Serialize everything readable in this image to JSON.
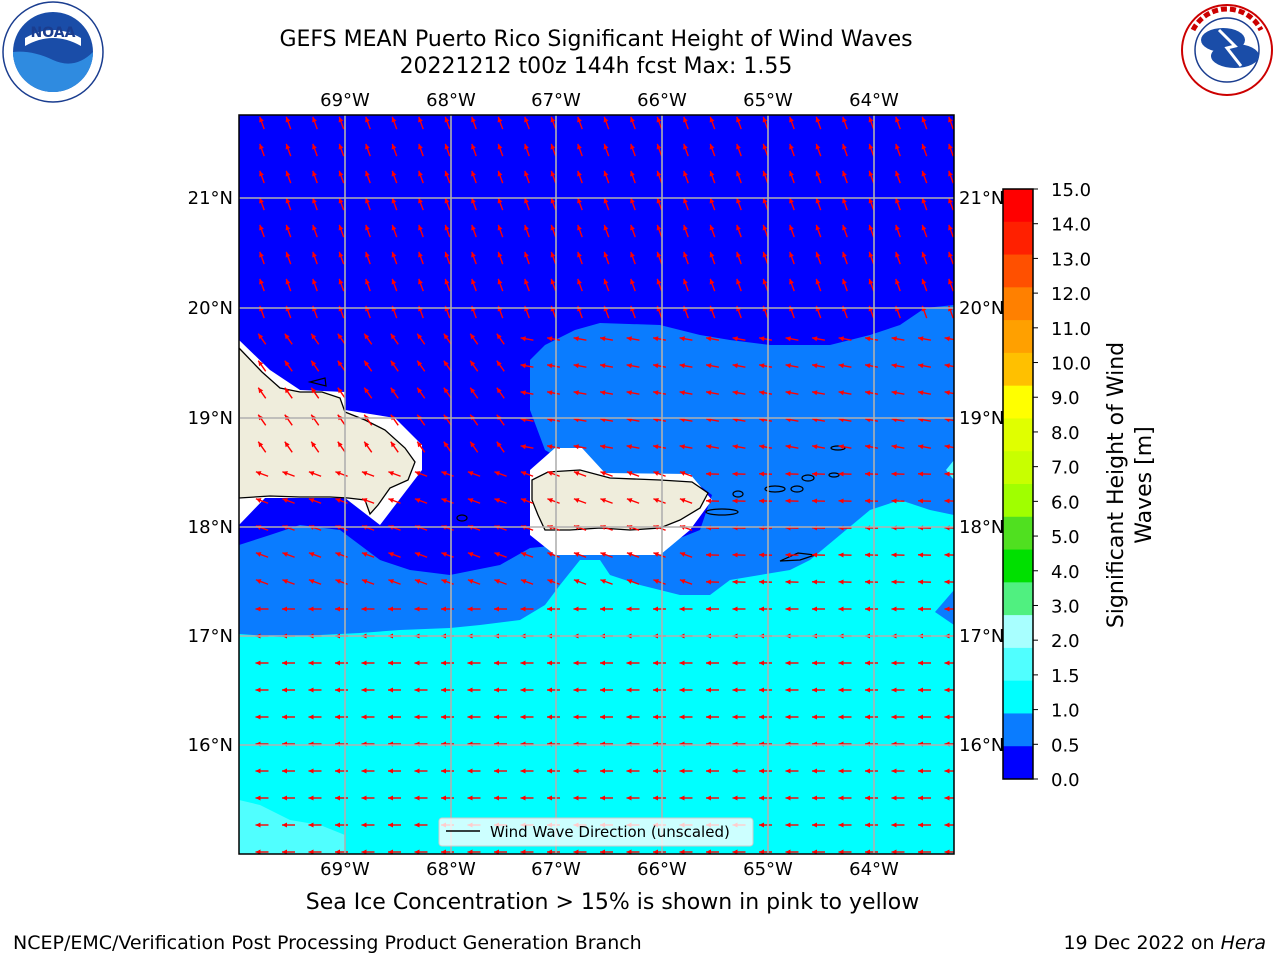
{
  "title": {
    "line1": "GEFS MEAN Puerto Rico Significant Height of Wind Waves",
    "line2": "20221212 t00z 144h fcst   Max: 1.55"
  },
  "map": {
    "lon_labels": [
      "69°W",
      "68°W",
      "67°W",
      "66°W",
      "65°W",
      "64°W"
    ],
    "lat_labels": [
      "21°N",
      "20°N",
      "19°N",
      "18°N",
      "17°N",
      "16°N"
    ],
    "legend_label": "Wind Wave Direction (unscaled)",
    "colors": {
      "band_0_0_5": "#0000ff",
      "band_0_5_1_0": "#0a7cff",
      "band_1_0_1_5": "#00ffff",
      "band_1_5_2_0": "#50ffff",
      "land": "#efeddc",
      "arrows": "#ff0000"
    }
  },
  "colorbar": {
    "label": "Significant Height of Wind Waves [m]",
    "label_line1": "Significant Height of Wind",
    "label_line2": "Waves [m]",
    "ticks": [
      "15.0",
      "14.0",
      "13.0",
      "12.0",
      "11.0",
      "10.0",
      "9.0",
      "8.0",
      "7.0",
      "6.0",
      "5.0",
      "4.0",
      "3.0",
      "2.0",
      "1.5",
      "1.0",
      "0.5",
      "0.0"
    ],
    "colors_top_to_bottom": [
      "#ff0000",
      "#ff2000",
      "#ff5000",
      "#ff8000",
      "#ffa000",
      "#ffc000",
      "#ffff00",
      "#e0ff00",
      "#c8ff00",
      "#a0ff00",
      "#50e020",
      "#00e000",
      "#50f080",
      "#a8ffff",
      "#50ffff",
      "#00ffff",
      "#0a7cff",
      "#0000ff"
    ]
  },
  "logos": {
    "left": "NOAA",
    "right_text": "NATIONAL WEATHER SERVICE"
  },
  "note": "Sea Ice Concentration > 15% is shown in pink to yellow",
  "footer": {
    "left": "NCEP/EMC/Verification Post Processing Product Generation Branch",
    "right_prefix": "19 Dec 2022 on ",
    "right_host": "Hera"
  }
}
